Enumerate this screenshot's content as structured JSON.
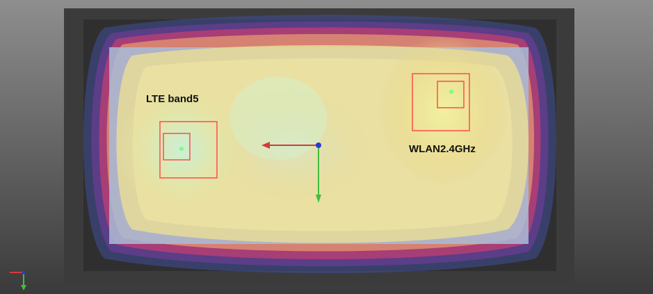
{
  "labels": {
    "lte": "LTE band5",
    "wlan": "WLAN2.4GHz"
  },
  "colors": {
    "background_top": "#8c8c8c",
    "background_bottom": "#3d3d3d",
    "frame_dark": "#3a3a3a",
    "frame_inner": "#2e2e2e",
    "board": "#9fb4d6",
    "marker_frame": "#ff4b4b",
    "feed_point": "#7cff7c",
    "axis_x": "#d43a3a",
    "axis_y": "#3fbf3f",
    "axis_z": "#2a3ad4"
  },
  "icons": {
    "origin_marker": "origin-axes-icon",
    "corner_triad": "coordinate-triad-icon"
  }
}
